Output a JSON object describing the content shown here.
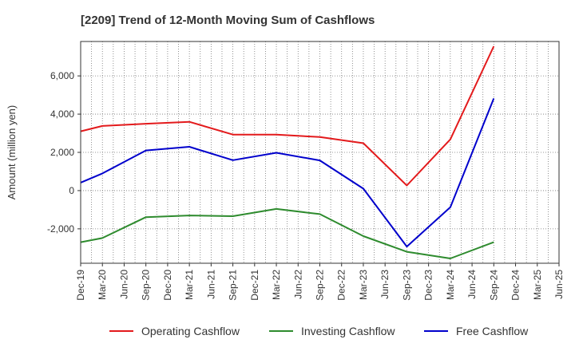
{
  "chart_data": {
    "type": "line",
    "title": "[2209]  Trend of 12-Month Moving Sum of Cashflows",
    "xlabel": "",
    "ylabel": "Amount (million yen)",
    "ylim": [
      -3800,
      7800
    ],
    "yticks": [
      -2000,
      0,
      2000,
      4000,
      6000
    ],
    "ytick_labels": [
      "-2,000",
      "0",
      "2,000",
      "4,000",
      "6,000"
    ],
    "categories": [
      "Dec-19",
      "Mar-20",
      "Jun-20",
      "Sep-20",
      "Dec-20",
      "Mar-21",
      "Jun-21",
      "Sep-21",
      "Dec-21",
      "Mar-22",
      "Jun-22",
      "Sep-22",
      "Dec-22",
      "Mar-23",
      "Jun-23",
      "Sep-23",
      "Dec-23",
      "Mar-24",
      "Jun-24",
      "Sep-24",
      "Dec-24",
      "Mar-25"
    ],
    "x_tick_labels": [
      "Dec-19",
      "Mar-20",
      "Jun-20",
      "Sep-20",
      "Dec-20",
      "Mar-21",
      "Jun-21",
      "Sep-21",
      "Dec-21",
      "Mar-22",
      "Jun-22",
      "Sep-22",
      "Dec-22",
      "Mar-23",
      "Jun-23",
      "Sep-23",
      "Dec-23",
      "Mar-24",
      "Jun-24",
      "Sep-24",
      "Dec-24",
      "Mar-25",
      "Jun-25"
    ],
    "grid": true,
    "legend_position": "bottom",
    "series": [
      {
        "name": "Operating Cashflow",
        "color": "#e31a1c",
        "values": [
          3100,
          3380,
          null,
          3500,
          null,
          3600,
          null,
          2930,
          null,
          2930,
          null,
          2800,
          null,
          2480,
          null,
          270,
          null,
          2680,
          null,
          7550,
          null,
          null
        ]
      },
      {
        "name": "Investing Cashflow",
        "color": "#2e8b2e",
        "values": [
          -2700,
          -2480,
          null,
          -1390,
          null,
          -1300,
          null,
          -1340,
          null,
          -960,
          null,
          -1230,
          null,
          -2380,
          null,
          -3200,
          null,
          -3550,
          null,
          -2700,
          null,
          null
        ]
      },
      {
        "name": "Free Cashflow",
        "color": "#0000cc",
        "values": [
          420,
          900,
          null,
          2100,
          null,
          2290,
          null,
          1590,
          null,
          1980,
          null,
          1580,
          null,
          100,
          null,
          -2930,
          null,
          -870,
          null,
          4820,
          null,
          null
        ]
      }
    ]
  }
}
